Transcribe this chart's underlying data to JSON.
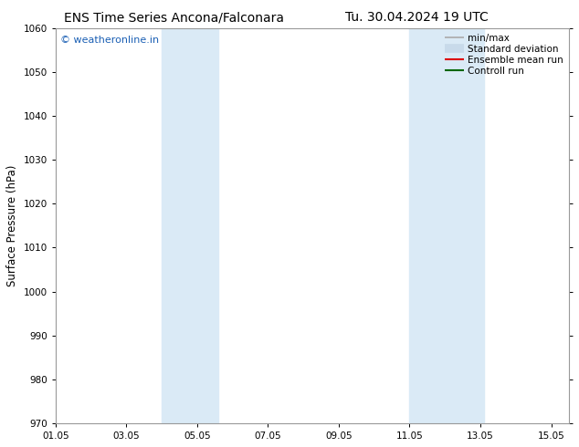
{
  "title_left": "ENS Time Series Ancona/Falconara",
  "title_right": "Tu. 30.04.2024 19 UTC",
  "ylabel": "Surface Pressure (hPa)",
  "xlim": [
    1.0,
    15.5
  ],
  "ylim": [
    970,
    1060
  ],
  "yticks": [
    970,
    980,
    990,
    1000,
    1010,
    1020,
    1030,
    1040,
    1050,
    1060
  ],
  "xtick_labels": [
    "01.05",
    "03.05",
    "05.05",
    "07.05",
    "09.05",
    "11.05",
    "13.05",
    "15.05"
  ],
  "xtick_positions": [
    1.0,
    3.0,
    5.0,
    7.0,
    9.0,
    11.0,
    13.0,
    15.0
  ],
  "shaded_bands": [
    {
      "x_start": 4.0,
      "x_end": 5.6
    },
    {
      "x_start": 11.0,
      "x_end": 13.1
    }
  ],
  "band_color": "#daeaf6",
  "watermark_text": "© weatheronline.in",
  "watermark_color": "#1a5fb4",
  "background_color": "#ffffff",
  "legend_items": [
    {
      "label": "min/max",
      "color": "#aaaaaa",
      "lw": 1.2
    },
    {
      "label": "Standard deviation",
      "color": "#c8daea",
      "lw": 7
    },
    {
      "label": "Ensemble mean run",
      "color": "#dd0000",
      "lw": 1.5
    },
    {
      "label": "Controll run",
      "color": "#006600",
      "lw": 1.5
    }
  ],
  "grid_color": "#dddddd",
  "tick_fontsize": 7.5,
  "title_fontsize": 10,
  "legend_fontsize": 7.5
}
